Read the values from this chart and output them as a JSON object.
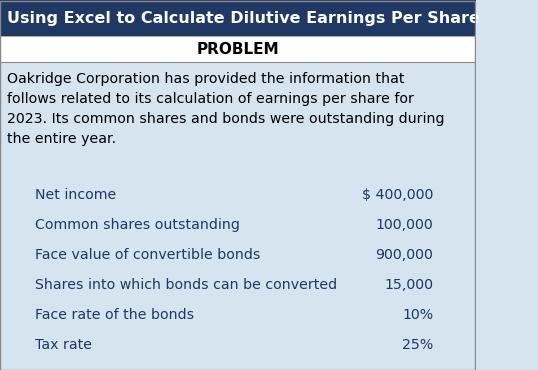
{
  "title": "Using Excel to Calculate Dilutive Earnings Per Share",
  "title_bg": "#1F3864",
  "title_color": "#FFFFFF",
  "subtitle": "PROBLEM",
  "subtitle_bg": "#FFFFFF",
  "subtitle_color": "#000000",
  "body_bg": "#D6E4F0",
  "body_text": "Oakridge Corporation has provided the information that\nfollows related to its calculation of earnings per share for\n2023. Its common shares and bonds were outstanding during\nthe entire year.",
  "body_text_color": "#000000",
  "line_items": [
    {
      "label": "Net income",
      "value": "$ 400,000"
    },
    {
      "label": "Common shares outstanding",
      "value": "100,000"
    },
    {
      "label": "Face value of convertible bonds",
      "value": "900,000"
    },
    {
      "label": "Shares into which bonds can be converted",
      "value": "15,000"
    },
    {
      "label": "Face rate of the bonds",
      "value": "10%"
    },
    {
      "label": "Tax rate",
      "value": "25%"
    }
  ],
  "line_item_color": "#1F3864",
  "grid_color": "#A0B4C8",
  "figsize": [
    5.38,
    3.7
  ],
  "dpi": 100
}
